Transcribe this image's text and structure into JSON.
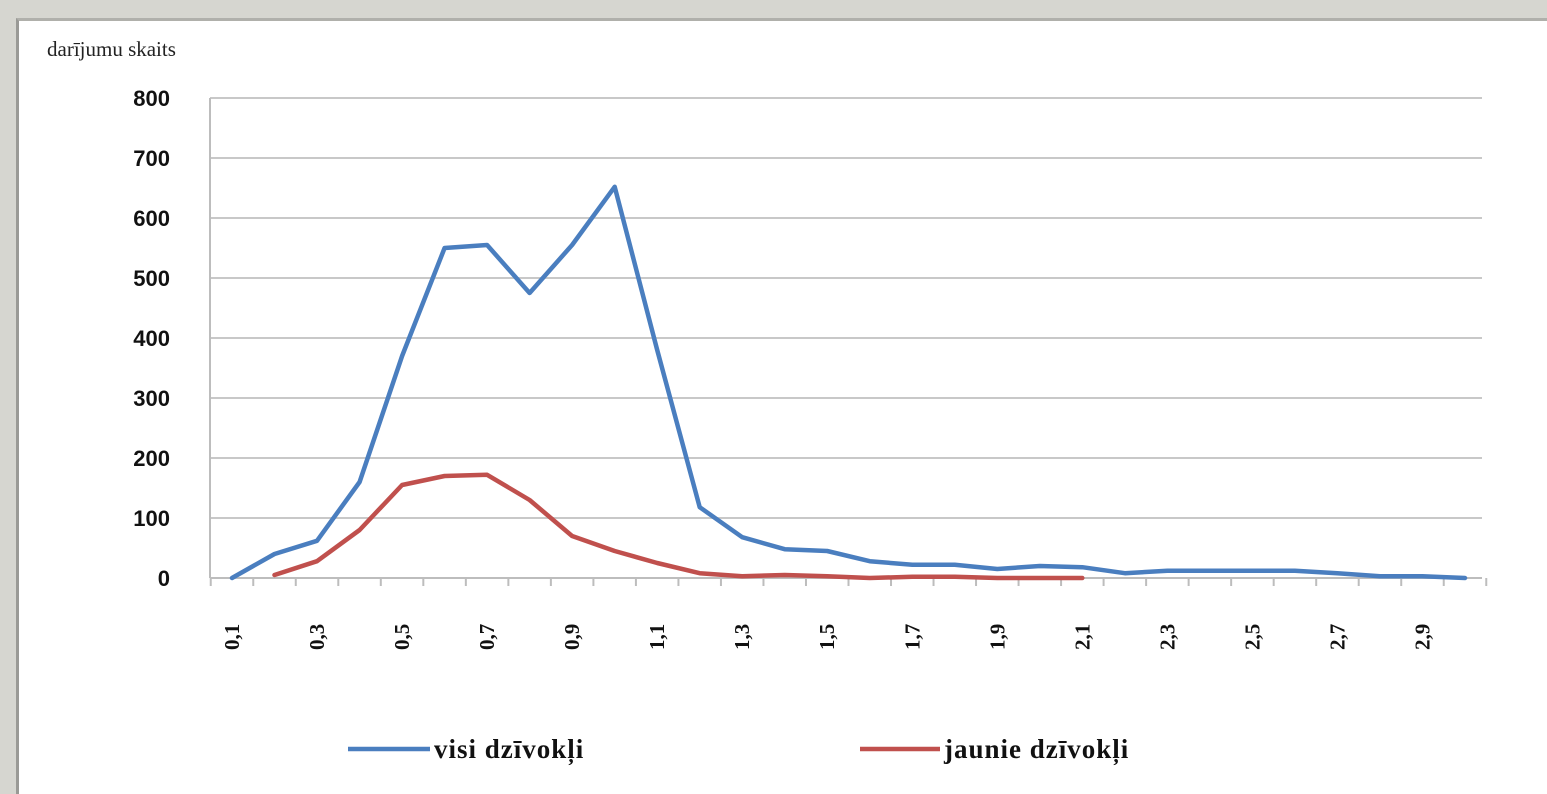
{
  "chart_data": {
    "type": "line",
    "ylabel": "darījumu skaits",
    "xlabel": "",
    "ylim": [
      0,
      800
    ],
    "yticks": [
      "800",
      "700",
      "600",
      "500",
      "400",
      "300",
      "200",
      "100",
      "0"
    ],
    "x": [
      0.1,
      0.2,
      0.3,
      0.4,
      0.5,
      0.6,
      0.7,
      0.8,
      0.9,
      1.0,
      1.1,
      1.2,
      1.3,
      1.4,
      1.5,
      1.6,
      1.7,
      1.8,
      1.9,
      2.0,
      2.1,
      2.2,
      2.3,
      2.4,
      2.5,
      2.6,
      2.7,
      2.8,
      2.9,
      3.0
    ],
    "xtick_labels": [
      "0,1",
      "0,3",
      "0,5",
      "0,7",
      "0,9",
      "1,1",
      "1,3",
      "1,5",
      "1,7",
      "1,9",
      "2,1",
      "2,3",
      "2,5",
      "2,7",
      "2,9"
    ],
    "grid": true,
    "legend_position": "bottom",
    "series": [
      {
        "name": "visi dzīvokļi",
        "color": "#4a7ebf",
        "values": [
          0,
          40,
          62,
          160,
          370,
          550,
          555,
          475,
          555,
          652,
          380,
          118,
          68,
          48,
          45,
          28,
          22,
          22,
          15,
          20,
          18,
          8,
          12,
          12,
          12,
          12,
          8,
          3,
          3,
          0
        ]
      },
      {
        "name": "jaunie dzīvokļi",
        "color": "#c0504d",
        "values": [
          null,
          5,
          28,
          80,
          155,
          170,
          172,
          130,
          70,
          45,
          25,
          8,
          3,
          5,
          3,
          0,
          2,
          2,
          0,
          0,
          0,
          null,
          null,
          null,
          null,
          null,
          null,
          null,
          null,
          null
        ]
      }
    ]
  }
}
